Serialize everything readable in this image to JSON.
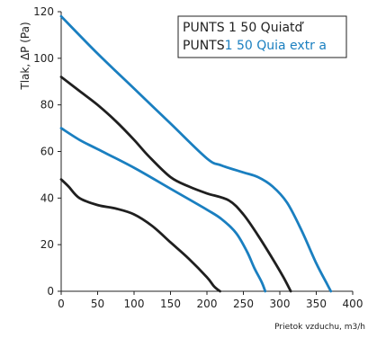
{
  "chart_data": {
    "type": "line",
    "xlabel": "Prietok vzduchu, m3/h",
    "ylabel": "Tlak, ΔP (Pa)",
    "xlim": [
      0,
      400
    ],
    "ylim": [
      0,
      120
    ],
    "x_ticks": [
      "0",
      "50",
      "100",
      "150",
      "200",
      "250",
      "300",
      "350",
      "400"
    ],
    "y_ticks": [
      "0",
      "20",
      "40",
      "60",
      "80",
      "100",
      "120"
    ],
    "grid": false,
    "legend": {
      "placement": "top-right",
      "entries": [
        {
          "prefix": "PUNTS 1 50 Quiatď",
          "suffix": "",
          "color": "#1f1f1f"
        },
        {
          "prefix": "PUNTS",
          "suffix": "1  50 Quia extr  a",
          "color": "#1a7fc0"
        }
      ]
    },
    "series": [
      {
        "color": "#1a7fc0",
        "points": [
          [
            0,
            118
          ],
          [
            50,
            102
          ],
          [
            100,
            87
          ],
          [
            150,
            72
          ],
          [
            200,
            57
          ],
          [
            220,
            54
          ],
          [
            250,
            51
          ],
          [
            270,
            49
          ],
          [
            290,
            45
          ],
          [
            310,
            38
          ],
          [
            330,
            26
          ],
          [
            350,
            12
          ],
          [
            365,
            3
          ],
          [
            370,
            0
          ]
        ]
      },
      {
        "color": "#1f1f1f",
        "points": [
          [
            0,
            92
          ],
          [
            25,
            86
          ],
          [
            50,
            80
          ],
          [
            75,
            73
          ],
          [
            100,
            65
          ],
          [
            120,
            58
          ],
          [
            150,
            49
          ],
          [
            175,
            45
          ],
          [
            200,
            42
          ],
          [
            230,
            39
          ],
          [
            250,
            33
          ],
          [
            270,
            24
          ],
          [
            290,
            14
          ],
          [
            305,
            6
          ],
          [
            315,
            0
          ]
        ]
      },
      {
        "color": "#1a7fc0",
        "points": [
          [
            0,
            70
          ],
          [
            25,
            65
          ],
          [
            50,
            61
          ],
          [
            100,
            53
          ],
          [
            150,
            44
          ],
          [
            200,
            35
          ],
          [
            220,
            31
          ],
          [
            240,
            25
          ],
          [
            255,
            17
          ],
          [
            265,
            10
          ],
          [
            275,
            4
          ],
          [
            280,
            0
          ]
        ]
      },
      {
        "color": "#1f1f1f",
        "points": [
          [
            0,
            48
          ],
          [
            10,
            45
          ],
          [
            25,
            40
          ],
          [
            50,
            37
          ],
          [
            75,
            35.5
          ],
          [
            100,
            33
          ],
          [
            125,
            28
          ],
          [
            150,
            21
          ],
          [
            175,
            14
          ],
          [
            200,
            6
          ],
          [
            210,
            2
          ],
          [
            218,
            0
          ]
        ]
      }
    ]
  }
}
